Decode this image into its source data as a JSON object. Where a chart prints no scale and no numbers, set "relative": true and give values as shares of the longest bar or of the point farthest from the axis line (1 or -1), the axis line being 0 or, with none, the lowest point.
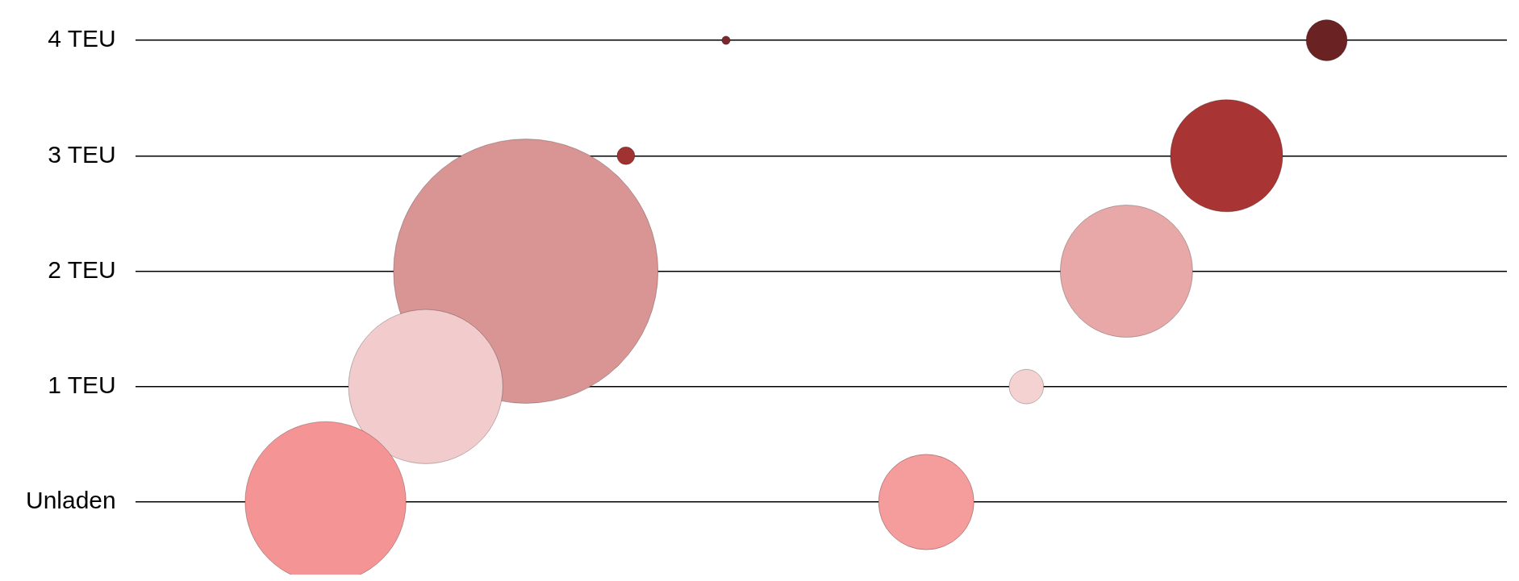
{
  "chart_data": {
    "type": "bubble",
    "orientation": "horizontal",
    "relative": true,
    "grid": "y",
    "legend": false,
    "categories": [
      "4 TEU",
      "3 TEU",
      "2 TEU",
      "1 TEU",
      "Unladen"
    ],
    "series": [
      {
        "values": [
          0.4,
          0.3,
          0.2,
          0.1,
          0
        ],
        "sizes": [
          0.001,
          0.0045,
          1,
          0.34,
          0.37
        ],
        "colors": [
          "#7a2a2a",
          "#a03232",
          "#d99494",
          "#f2cccc",
          "#f59494"
        ]
      },
      {
        "values": [
          1,
          0.9,
          0.8,
          0.7,
          0.6
        ],
        "sizes": [
          0.024,
          0.18,
          0.25,
          0.017,
          0.13
        ],
        "colors": [
          "#6a2222",
          "#a83434",
          "#e8a8a8",
          "#f4d2d2",
          "#f59c9c"
        ]
      }
    ]
  }
}
